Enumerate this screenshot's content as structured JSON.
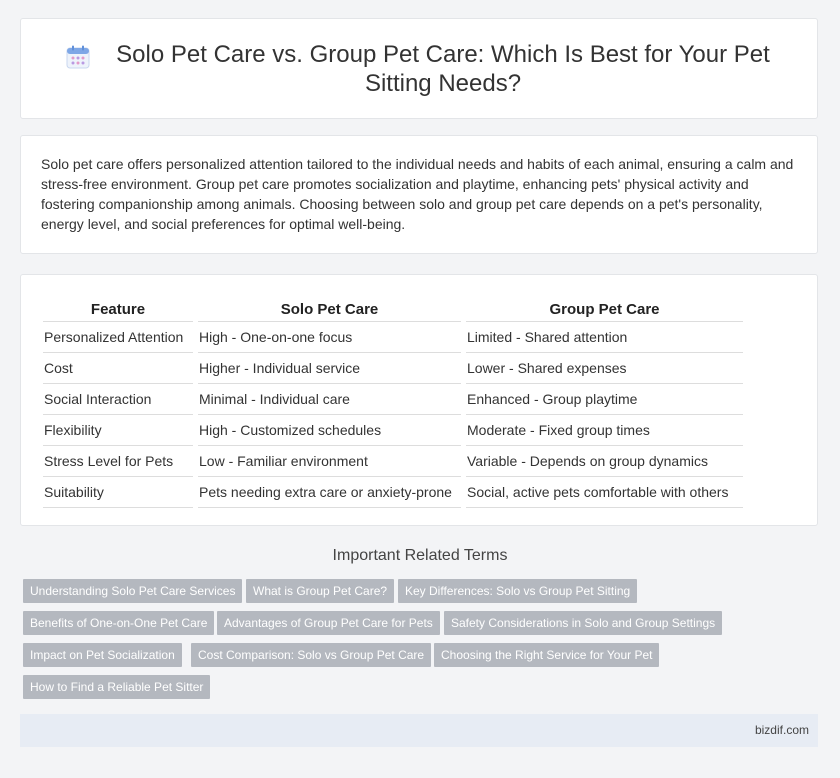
{
  "header": {
    "title": "Solo Pet Care vs. Group Pet Care: Which Is Best for Your Pet Sitting Needs?",
    "icon": "calendar-icon"
  },
  "summary": "Solo pet care offers personalized attention tailored to the individual needs and habits of each animal, ensuring a calm and stress-free environment. Group pet care promotes socialization and playtime, enhancing pets' physical activity and fostering companionship among animals. Choosing between solo and group pet care depends on a pet's personality, energy level, and social preferences for optimal well-being.",
  "table": {
    "headers": [
      "Feature",
      "Solo Pet Care",
      "Group Pet Care"
    ],
    "rows": [
      [
        "Personalized Attention",
        "High - One-on-one focus",
        "Limited - Shared attention"
      ],
      [
        "Cost",
        "Higher - Individual service",
        "Lower - Shared expenses"
      ],
      [
        "Social Interaction",
        "Minimal - Individual care",
        "Enhanced - Group playtime"
      ],
      [
        "Flexibility",
        "High - Customized schedules",
        "Moderate - Fixed group times"
      ],
      [
        "Stress Level for Pets",
        "Low - Familiar environment",
        "Variable - Depends on group dynamics"
      ],
      [
        "Suitability",
        "Pets needing extra care or anxiety-prone",
        "Social, active pets comfortable with others"
      ]
    ]
  },
  "related": {
    "title": "Important Related Terms",
    "tags": [
      "Understanding Solo Pet Care Services",
      "What is Group Pet Care?",
      "Key Differences: Solo vs Group Pet Sitting",
      "Benefits of One-on-One Pet Care",
      "Advantages of Group Pet Care for Pets",
      "Safety Considerations in Solo and Group Settings",
      "Impact on Pet Socialization",
      "Cost Comparison: Solo vs Group Pet Care",
      "Choosing the Right Service for Your Pet",
      "How to Find a Reliable Pet Sitter"
    ]
  },
  "footer": {
    "brand": "bizdif.com"
  },
  "colors": {
    "tag_bg": "#b4b8bf",
    "footer_bg": "#e7ecf4",
    "icon_accent": "#7ea7e6"
  }
}
